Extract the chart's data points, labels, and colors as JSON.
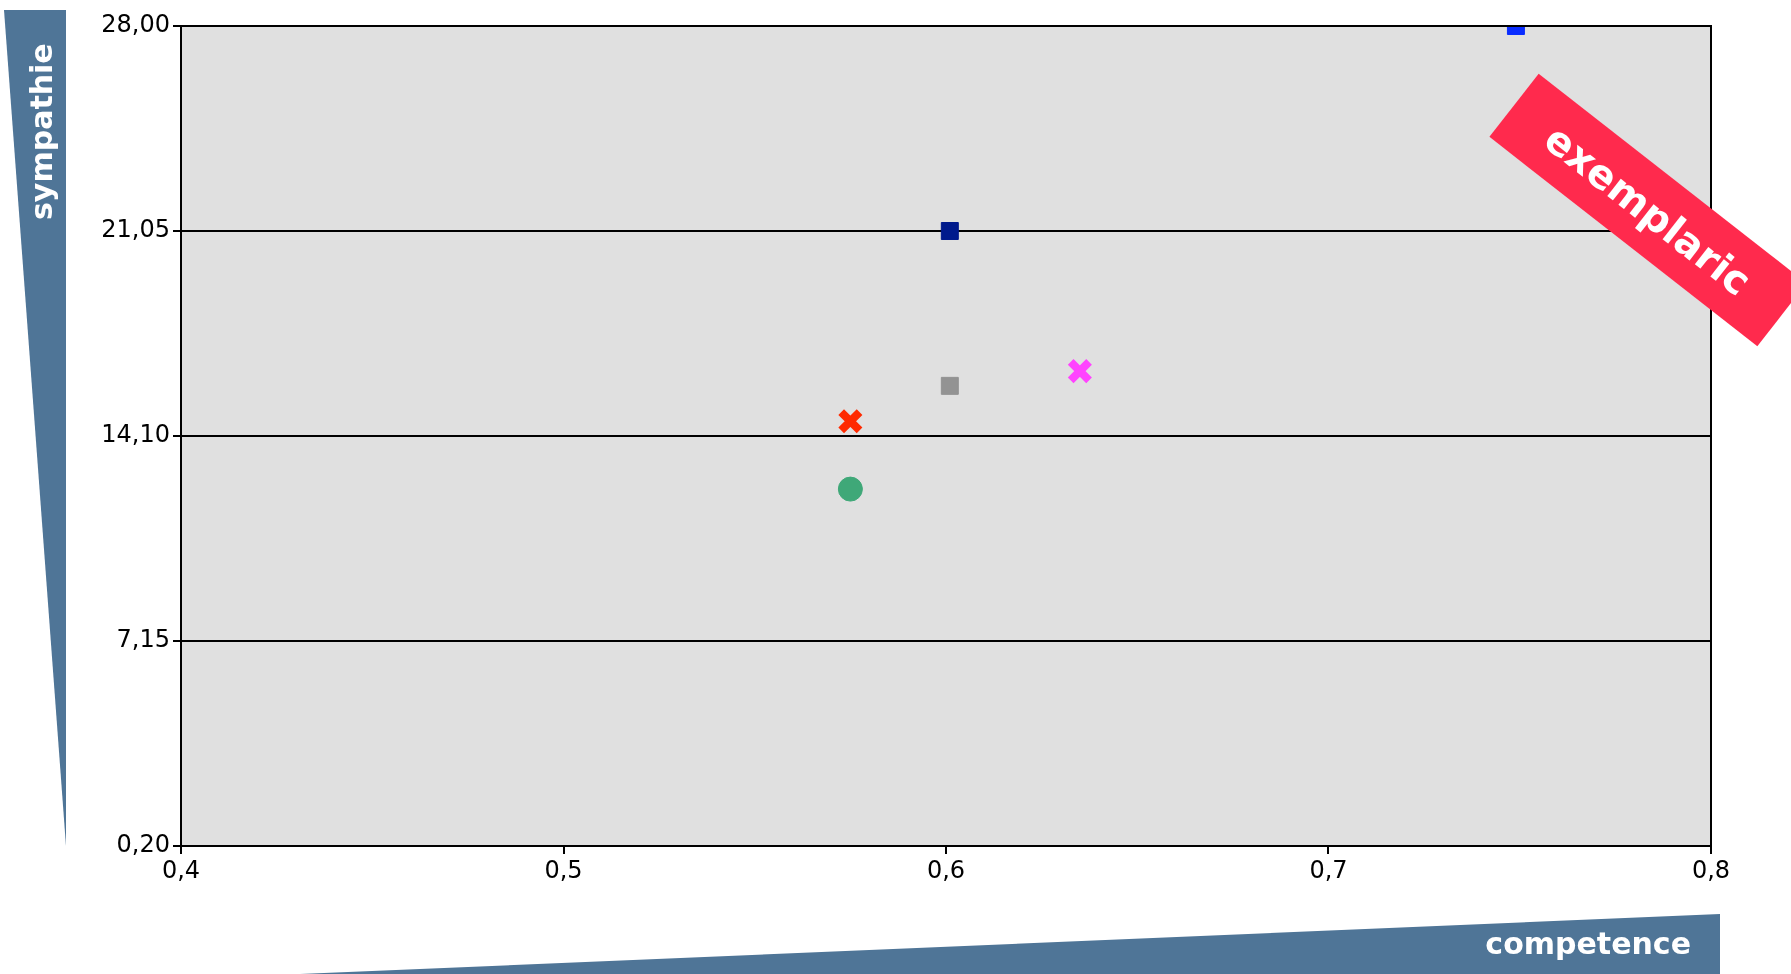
{
  "chart_data": {
    "type": "scatter",
    "xlabel": "competence",
    "ylabel": "sympathie",
    "xlim": [
      0.4,
      0.8
    ],
    "xticks": [
      {
        "value": 0.4,
        "label": "0,4"
      },
      {
        "value": 0.5,
        "label": "0,5"
      },
      {
        "value": 0.6,
        "label": "0,6"
      },
      {
        "value": 0.7,
        "label": "0,7"
      },
      {
        "value": 0.8,
        "label": "0,8"
      }
    ],
    "ylim": [
      0.2,
      28
    ],
    "yticks": [
      {
        "value": 0.2,
        "label": "0,20"
      },
      {
        "value": 7.15,
        "label": "7,15"
      },
      {
        "value": 14.1,
        "label": "14,10"
      },
      {
        "value": 21.05,
        "label": "21,05"
      },
      {
        "value": 28,
        "label": "28,00"
      }
    ],
    "grid": "y",
    "annotations": [
      "exemplaric"
    ],
    "series": [
      {
        "color": "#0a2dff",
        "marker": "square",
        "x": [
          0.749
        ],
        "values": [
          28.0
        ]
      },
      {
        "color": "#001a8c",
        "marker": "square",
        "x": [
          0.601
        ],
        "values": [
          21.05
        ]
      },
      {
        "color": "#939393",
        "marker": "square",
        "x": [
          0.601
        ],
        "values": [
          15.8
        ]
      },
      {
        "color": "#ff44ff",
        "marker": "cross",
        "x": [
          0.635
        ],
        "values": [
          16.3
        ]
      },
      {
        "color": "#ff2a00",
        "marker": "cross",
        "x": [
          0.575
        ],
        "values": [
          14.6
        ]
      },
      {
        "color": "#3fa878",
        "marker": "circle",
        "x": [
          0.575
        ],
        "values": [
          12.3
        ]
      }
    ]
  }
}
